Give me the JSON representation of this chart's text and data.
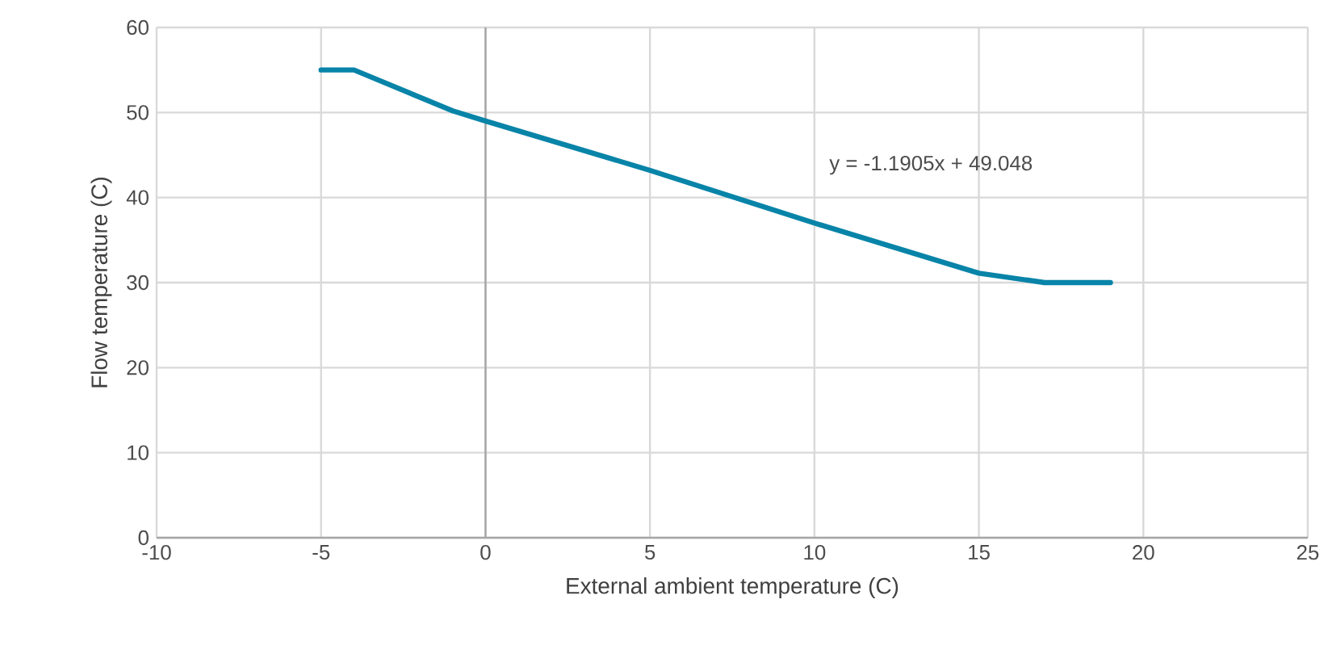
{
  "chart_data": {
    "type": "line",
    "xlabel": "External ambient temperature (C)",
    "ylabel": "Flow temperature (C)",
    "x": [
      -5,
      -4,
      -1,
      0,
      5,
      10,
      15,
      17,
      19
    ],
    "series": [
      {
        "color": "#0884a8",
        "values": [
          55,
          55,
          50.2,
          49,
          43.2,
          37,
          31.1,
          30,
          30
        ]
      }
    ],
    "xlim": [
      -10,
      25
    ],
    "xticks": [
      -10,
      -5,
      0,
      5,
      10,
      15,
      20,
      25
    ],
    "ylim": [
      0,
      60
    ],
    "yticks": [
      0,
      10,
      20,
      30,
      40,
      50,
      60
    ],
    "grid": true,
    "marker": "none",
    "line_style": "solid",
    "annotations": [
      "y = -1.1905x + 49.048"
    ]
  }
}
